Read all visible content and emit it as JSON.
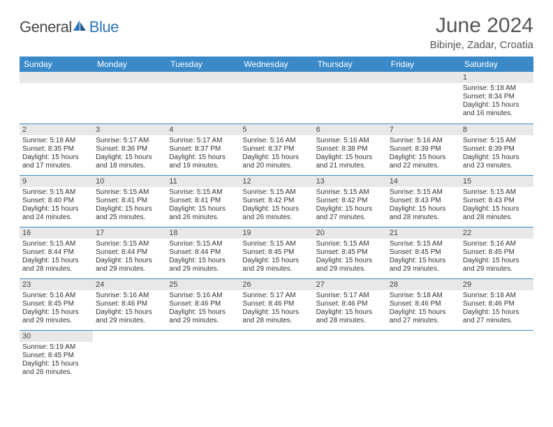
{
  "brand": {
    "general": "General",
    "blue": "Blue"
  },
  "title": "June 2024",
  "subtitle": "Bibinje, Zadar, Croatia",
  "colors": {
    "header_bg": "#3a8ac9",
    "header_text": "#ffffff",
    "daynum_bg": "#e8e8e8",
    "rule": "#3a8ac9",
    "brand_blue": "#2e75b6",
    "text": "#333333"
  },
  "weekdays": [
    "Sunday",
    "Monday",
    "Tuesday",
    "Wednesday",
    "Thursday",
    "Friday",
    "Saturday"
  ],
  "weeks": [
    [
      null,
      null,
      null,
      null,
      null,
      null,
      {
        "n": "1",
        "sr": "5:18 AM",
        "ss": "8:34 PM",
        "dl": "15 hours and 16 minutes."
      }
    ],
    [
      {
        "n": "2",
        "sr": "5:18 AM",
        "ss": "8:35 PM",
        "dl": "15 hours and 17 minutes."
      },
      {
        "n": "3",
        "sr": "5:17 AM",
        "ss": "8:36 PM",
        "dl": "15 hours and 18 minutes."
      },
      {
        "n": "4",
        "sr": "5:17 AM",
        "ss": "8:37 PM",
        "dl": "15 hours and 19 minutes."
      },
      {
        "n": "5",
        "sr": "5:16 AM",
        "ss": "8:37 PM",
        "dl": "15 hours and 20 minutes."
      },
      {
        "n": "6",
        "sr": "5:16 AM",
        "ss": "8:38 PM",
        "dl": "15 hours and 21 minutes."
      },
      {
        "n": "7",
        "sr": "5:16 AM",
        "ss": "8:39 PM",
        "dl": "15 hours and 22 minutes."
      },
      {
        "n": "8",
        "sr": "5:15 AM",
        "ss": "8:39 PM",
        "dl": "15 hours and 23 minutes."
      }
    ],
    [
      {
        "n": "9",
        "sr": "5:15 AM",
        "ss": "8:40 PM",
        "dl": "15 hours and 24 minutes."
      },
      {
        "n": "10",
        "sr": "5:15 AM",
        "ss": "8:41 PM",
        "dl": "15 hours and 25 minutes."
      },
      {
        "n": "11",
        "sr": "5:15 AM",
        "ss": "8:41 PM",
        "dl": "15 hours and 26 minutes."
      },
      {
        "n": "12",
        "sr": "5:15 AM",
        "ss": "8:42 PM",
        "dl": "15 hours and 26 minutes."
      },
      {
        "n": "13",
        "sr": "5:15 AM",
        "ss": "8:42 PM",
        "dl": "15 hours and 27 minutes."
      },
      {
        "n": "14",
        "sr": "5:15 AM",
        "ss": "8:43 PM",
        "dl": "15 hours and 28 minutes."
      },
      {
        "n": "15",
        "sr": "5:15 AM",
        "ss": "8:43 PM",
        "dl": "15 hours and 28 minutes."
      }
    ],
    [
      {
        "n": "16",
        "sr": "5:15 AM",
        "ss": "8:44 PM",
        "dl": "15 hours and 28 minutes."
      },
      {
        "n": "17",
        "sr": "5:15 AM",
        "ss": "8:44 PM",
        "dl": "15 hours and 29 minutes."
      },
      {
        "n": "18",
        "sr": "5:15 AM",
        "ss": "8:44 PM",
        "dl": "15 hours and 29 minutes."
      },
      {
        "n": "19",
        "sr": "5:15 AM",
        "ss": "8:45 PM",
        "dl": "15 hours and 29 minutes."
      },
      {
        "n": "20",
        "sr": "5:15 AM",
        "ss": "8:45 PM",
        "dl": "15 hours and 29 minutes."
      },
      {
        "n": "21",
        "sr": "5:15 AM",
        "ss": "8:45 PM",
        "dl": "15 hours and 29 minutes."
      },
      {
        "n": "22",
        "sr": "5:16 AM",
        "ss": "8:45 PM",
        "dl": "15 hours and 29 minutes."
      }
    ],
    [
      {
        "n": "23",
        "sr": "5:16 AM",
        "ss": "8:45 PM",
        "dl": "15 hours and 29 minutes."
      },
      {
        "n": "24",
        "sr": "5:16 AM",
        "ss": "8:46 PM",
        "dl": "15 hours and 29 minutes."
      },
      {
        "n": "25",
        "sr": "5:16 AM",
        "ss": "8:46 PM",
        "dl": "15 hours and 29 minutes."
      },
      {
        "n": "26",
        "sr": "5:17 AM",
        "ss": "8:46 PM",
        "dl": "15 hours and 28 minutes."
      },
      {
        "n": "27",
        "sr": "5:17 AM",
        "ss": "8:46 PM",
        "dl": "15 hours and 28 minutes."
      },
      {
        "n": "28",
        "sr": "5:18 AM",
        "ss": "8:46 PM",
        "dl": "15 hours and 27 minutes."
      },
      {
        "n": "29",
        "sr": "5:18 AM",
        "ss": "8:46 PM",
        "dl": "15 hours and 27 minutes."
      }
    ],
    [
      {
        "n": "30",
        "sr": "5:19 AM",
        "ss": "8:45 PM",
        "dl": "15 hours and 26 minutes."
      },
      null,
      null,
      null,
      null,
      null,
      null
    ]
  ],
  "labels": {
    "sunrise": "Sunrise:",
    "sunset": "Sunset:",
    "daylight": "Daylight:"
  }
}
